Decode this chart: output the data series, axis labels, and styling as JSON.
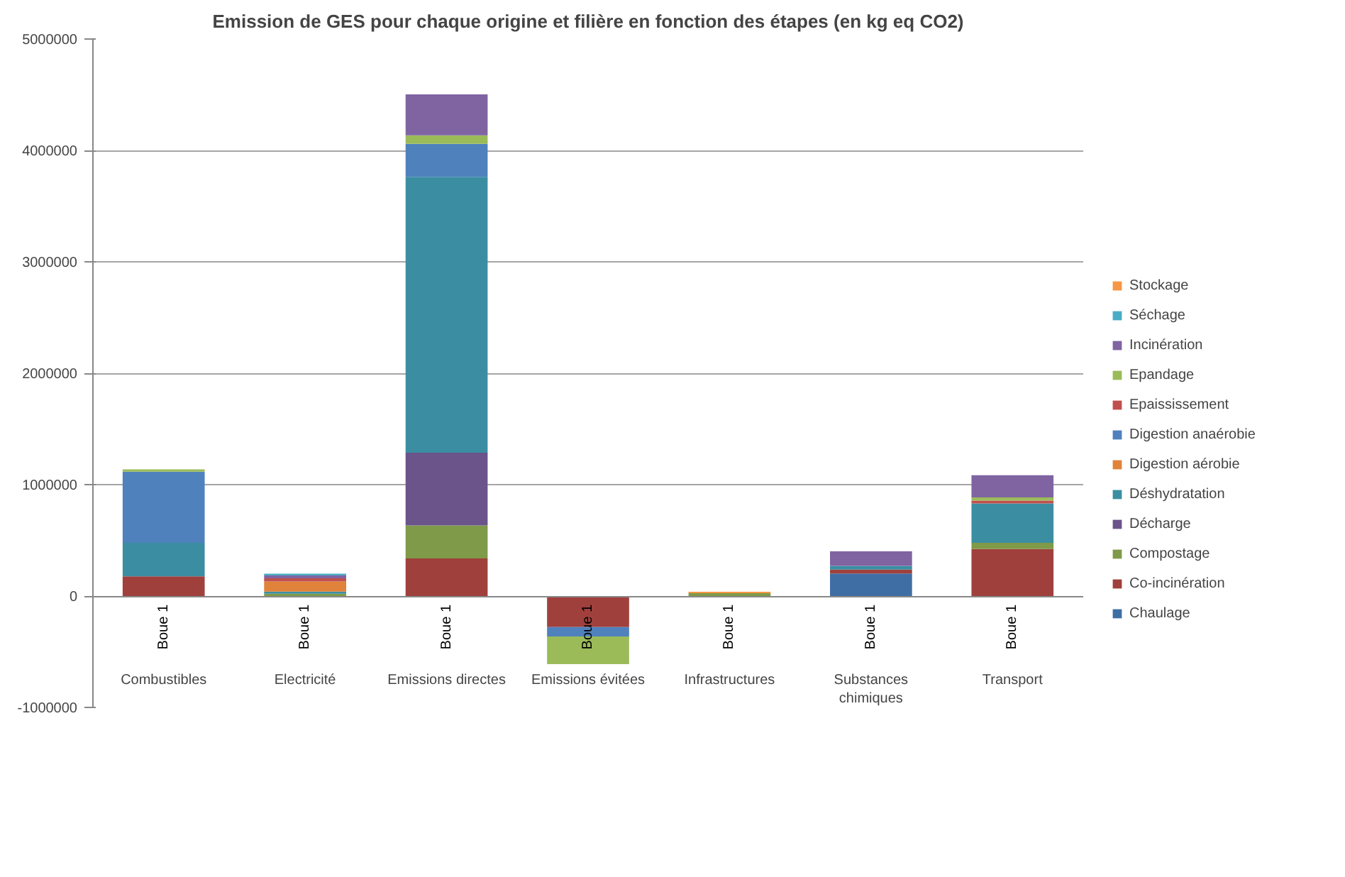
{
  "chart_data": {
    "type": "bar",
    "stacked": true,
    "title": "Emission de GES pour chaque origine et filière en fonction des étapes (en kg eq CO2)",
    "categories": [
      "Combustibles",
      "Electricité",
      "Emissions directes",
      "Emissions évitées",
      "Infrastructures",
      "Substances chimiques",
      "Transport"
    ],
    "annotations": [
      "Boue 1",
      "Boue 1",
      "Boue 1",
      "Boue 1",
      "Boue 1",
      "Boue 1",
      "Boue 1"
    ],
    "ylim": [
      -1000000,
      5000000
    ],
    "yticks": [
      -1000000,
      0,
      1000000,
      2000000,
      3000000,
      4000000,
      5000000
    ],
    "grid": "y",
    "legend": "right",
    "series": [
      {
        "name": "Chaulage",
        "color": "#3f6ea5",
        "values": [
          null,
          null,
          null,
          null,
          null,
          203000,
          null
        ]
      },
      {
        "name": "Co-incinération",
        "color": "#a0403c",
        "values": [
          177000,
          null,
          338000,
          -278000,
          null,
          34000,
          422000
        ]
      },
      {
        "name": "Compostage",
        "color": "#7f9a48",
        "values": [
          null,
          20000,
          295000,
          null,
          25000,
          null,
          55000
        ]
      },
      {
        "name": "Décharge",
        "color": "#6a548a",
        "values": [
          null,
          null,
          654000,
          null,
          null,
          null,
          null
        ]
      },
      {
        "name": "Déshydratation",
        "color": "#3b8ea2",
        "values": [
          300000,
          20000,
          2476000,
          null,
          null,
          33000,
          355000
        ]
      },
      {
        "name": "Digestion aérobie",
        "color": "#e0823a",
        "values": [
          null,
          90000,
          null,
          null,
          null,
          null,
          null
        ]
      },
      {
        "name": "Digestion anaérobie",
        "color": "#4f81bd",
        "values": [
          640000,
          null,
          296000,
          -85000,
          null,
          null,
          null
        ]
      },
      {
        "name": "Epaississement",
        "color": "#c0504d",
        "values": [
          null,
          30000,
          null,
          null,
          null,
          null,
          25000
        ]
      },
      {
        "name": "Epandage",
        "color": "#9bbb59",
        "values": [
          20000,
          null,
          76000,
          -249000,
          null,
          null,
          29000
        ]
      },
      {
        "name": "Incinération",
        "color": "#8064a2",
        "values": [
          null,
          25000,
          368000,
          null,
          null,
          131000,
          199000
        ]
      },
      {
        "name": "Séchage",
        "color": "#4bacc6",
        "values": [
          null,
          15000,
          null,
          null,
          null,
          null,
          null
        ]
      },
      {
        "name": "Stockage",
        "color": "#f79646",
        "values": [
          null,
          null,
          null,
          null,
          13000,
          null,
          null
        ]
      }
    ]
  }
}
